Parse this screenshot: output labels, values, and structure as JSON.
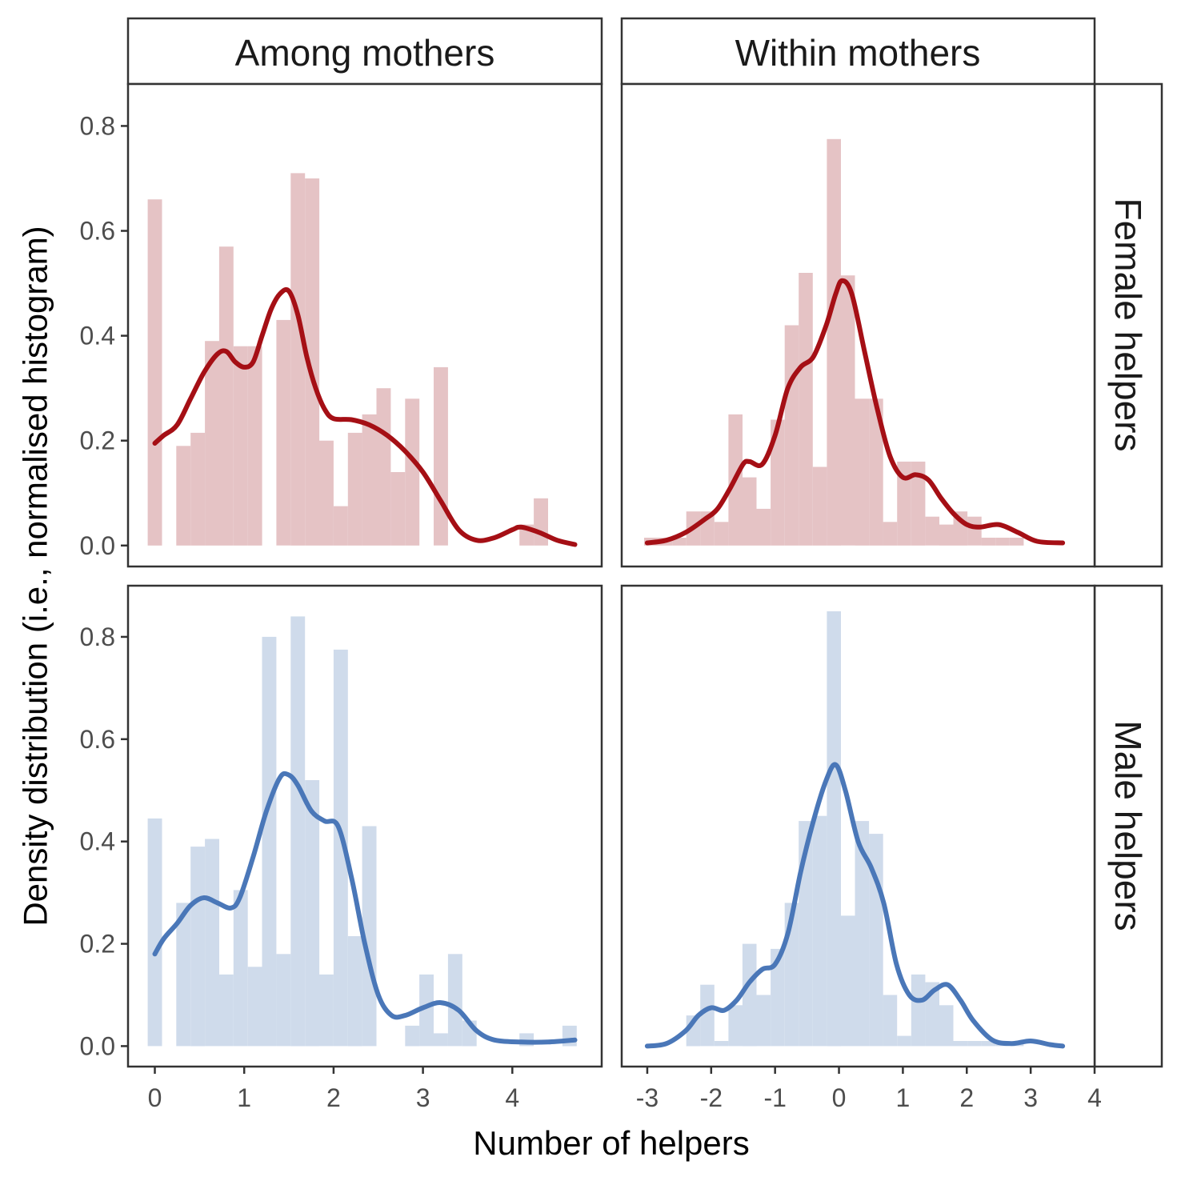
{
  "colors": {
    "female_line": "#a50f15",
    "female_bar": "#e5c3c5",
    "male_line": "#4a77b8",
    "male_bar": "#cfdbeb",
    "frame": "#333333",
    "tick_text": "#4d4d4d"
  },
  "chart_data": {
    "type": "bar",
    "xlabel": "Number of helpers",
    "ylabel": "Density distribution (i.e., normalised histogram)",
    "col_strips": [
      "Among mothers",
      "Within mothers"
    ],
    "row_strips": [
      "Female helpers",
      "Male helpers"
    ],
    "panels": [
      {
        "row": 0,
        "col": 0,
        "helpers": "female",
        "group": "among",
        "xlim": [
          -0.3,
          5.0
        ],
        "ylim": [
          -0.04,
          0.88
        ],
        "xticks": [
          0,
          1,
          2,
          3,
          4
        ],
        "xtick_labels": [
          "0",
          "1",
          "2",
          "3",
          "4"
        ],
        "yticks": [
          0.0,
          0.2,
          0.4,
          0.6,
          0.8
        ],
        "ytick_labels": [
          "0.0",
          "0.2",
          "0.4",
          "0.6",
          "0.8"
        ],
        "bin_start": -0.08,
        "bin_width": 0.16,
        "bars": [
          0.66,
          0,
          0.19,
          0.215,
          0.39,
          0.57,
          0.38,
          0.38,
          0,
          0.43,
          0.71,
          0.7,
          0.2,
          0.075,
          0.215,
          0.25,
          0.3,
          0.14,
          0.28,
          0,
          0.34,
          0,
          0,
          0,
          0,
          0,
          0.04,
          0.09,
          0,
          0
        ],
        "density": [
          [
            0.0,
            0.195
          ],
          [
            0.1,
            0.21
          ],
          [
            0.25,
            0.23
          ],
          [
            0.4,
            0.28
          ],
          [
            0.55,
            0.33
          ],
          [
            0.7,
            0.365
          ],
          [
            0.8,
            0.37
          ],
          [
            0.9,
            0.35
          ],
          [
            1.0,
            0.34
          ],
          [
            1.1,
            0.35
          ],
          [
            1.2,
            0.4
          ],
          [
            1.3,
            0.45
          ],
          [
            1.4,
            0.48
          ],
          [
            1.5,
            0.485
          ],
          [
            1.6,
            0.44
          ],
          [
            1.7,
            0.36
          ],
          [
            1.8,
            0.3
          ],
          [
            1.9,
            0.26
          ],
          [
            2.0,
            0.242
          ],
          [
            2.2,
            0.24
          ],
          [
            2.4,
            0.23
          ],
          [
            2.6,
            0.21
          ],
          [
            2.8,
            0.18
          ],
          [
            3.0,
            0.14
          ],
          [
            3.2,
            0.085
          ],
          [
            3.4,
            0.03
          ],
          [
            3.6,
            0.01
          ],
          [
            3.8,
            0.015
          ],
          [
            4.0,
            0.03
          ],
          [
            4.1,
            0.035
          ],
          [
            4.3,
            0.025
          ],
          [
            4.5,
            0.01
          ],
          [
            4.7,
            0.002
          ]
        ]
      },
      {
        "row": 0,
        "col": 1,
        "helpers": "female",
        "group": "within",
        "xlim": [
          -3.4,
          4.0
        ],
        "ylim": [
          -0.04,
          0.88
        ],
        "xticks": [
          -3,
          -2,
          -1,
          0,
          1,
          2,
          3,
          4
        ],
        "xtick_labels": [
          "-3",
          "-2",
          "-1",
          "0",
          "1",
          "2",
          "3",
          "4"
        ],
        "yticks": [
          0.0,
          0.2,
          0.4,
          0.6,
          0.8
        ],
        "ytick_labels": [
          "0.0",
          "0.2",
          "0.4",
          "0.6",
          "0.8"
        ],
        "bin_start": -3.05,
        "bin_width": 0.22,
        "bars": [
          0.015,
          0.015,
          0.015,
          0.065,
          0.065,
          0.045,
          0.25,
          0.13,
          0.07,
          0.24,
          0.42,
          0.52,
          0.15,
          0.775,
          0.515,
          0.28,
          0.28,
          0.045,
          0.16,
          0.16,
          0.055,
          0.04,
          0.065,
          0.055,
          0.015,
          0.015,
          0.015
        ],
        "density": [
          [
            -3.0,
            0.005
          ],
          [
            -2.7,
            0.01
          ],
          [
            -2.4,
            0.025
          ],
          [
            -2.1,
            0.05
          ],
          [
            -1.9,
            0.07
          ],
          [
            -1.7,
            0.11
          ],
          [
            -1.5,
            0.155
          ],
          [
            -1.4,
            0.16
          ],
          [
            -1.2,
            0.155
          ],
          [
            -1.0,
            0.21
          ],
          [
            -0.8,
            0.3
          ],
          [
            -0.6,
            0.34
          ],
          [
            -0.4,
            0.36
          ],
          [
            -0.2,
            0.42
          ],
          [
            -0.05,
            0.48
          ],
          [
            0.05,
            0.505
          ],
          [
            0.2,
            0.48
          ],
          [
            0.4,
            0.37
          ],
          [
            0.6,
            0.26
          ],
          [
            0.8,
            0.17
          ],
          [
            1.0,
            0.13
          ],
          [
            1.2,
            0.135
          ],
          [
            1.4,
            0.125
          ],
          [
            1.6,
            0.09
          ],
          [
            1.8,
            0.06
          ],
          [
            2.0,
            0.04
          ],
          [
            2.2,
            0.035
          ],
          [
            2.5,
            0.04
          ],
          [
            2.8,
            0.025
          ],
          [
            3.1,
            0.008
          ],
          [
            3.5,
            0.005
          ]
        ]
      },
      {
        "row": 1,
        "col": 0,
        "helpers": "male",
        "group": "among",
        "xlim": [
          -0.3,
          5.0
        ],
        "ylim": [
          -0.04,
          0.9
        ],
        "xticks": [
          0,
          1,
          2,
          3,
          4
        ],
        "xtick_labels": [
          "0",
          "1",
          "2",
          "3",
          "4"
        ],
        "yticks": [
          0.0,
          0.2,
          0.4,
          0.6,
          0.8
        ],
        "ytick_labels": [
          "0.0",
          "0.2",
          "0.4",
          "0.6",
          "0.8"
        ],
        "bin_start": -0.08,
        "bin_width": 0.16,
        "bars": [
          0.445,
          0,
          0.28,
          0.39,
          0.405,
          0.14,
          0.305,
          0.155,
          0.8,
          0.18,
          0.84,
          0.52,
          0.14,
          0.775,
          0.215,
          0.43,
          0,
          0,
          0.04,
          0.14,
          0.025,
          0.18,
          0.05,
          0,
          0,
          0,
          0.025,
          0,
          0,
          0.04
        ],
        "density": [
          [
            0.0,
            0.18
          ],
          [
            0.1,
            0.21
          ],
          [
            0.25,
            0.24
          ],
          [
            0.4,
            0.275
          ],
          [
            0.55,
            0.29
          ],
          [
            0.7,
            0.28
          ],
          [
            0.85,
            0.27
          ],
          [
            0.95,
            0.29
          ],
          [
            1.1,
            0.37
          ],
          [
            1.25,
            0.46
          ],
          [
            1.4,
            0.525
          ],
          [
            1.5,
            0.53
          ],
          [
            1.6,
            0.51
          ],
          [
            1.75,
            0.46
          ],
          [
            1.9,
            0.44
          ],
          [
            2.05,
            0.43
          ],
          [
            2.2,
            0.33
          ],
          [
            2.35,
            0.2
          ],
          [
            2.5,
            0.1
          ],
          [
            2.65,
            0.06
          ],
          [
            2.8,
            0.06
          ],
          [
            3.0,
            0.075
          ],
          [
            3.2,
            0.085
          ],
          [
            3.4,
            0.07
          ],
          [
            3.6,
            0.03
          ],
          [
            3.8,
            0.012
          ],
          [
            4.1,
            0.008
          ],
          [
            4.4,
            0.008
          ],
          [
            4.7,
            0.012
          ]
        ]
      },
      {
        "row": 1,
        "col": 1,
        "helpers": "male",
        "group": "within",
        "xlim": [
          -3.4,
          4.0
        ],
        "ylim": [
          -0.04,
          0.9
        ],
        "xticks": [
          -3,
          -2,
          -1,
          0,
          1,
          2,
          3,
          4
        ],
        "xtick_labels": [
          "-3",
          "-2",
          "-1",
          "0",
          "1",
          "2",
          "3",
          "4"
        ],
        "yticks": [
          0.0,
          0.2,
          0.4,
          0.6,
          0.8
        ],
        "ytick_labels": [
          "0.0",
          "0.2",
          "0.4",
          "0.6",
          "0.8"
        ],
        "bin_start": -3.05,
        "bin_width": 0.22,
        "bars": [
          0,
          0,
          0,
          0.06,
          0.12,
          0.01,
          0.08,
          0.2,
          0.1,
          0.19,
          0.28,
          0.44,
          0.45,
          0.85,
          0.255,
          0.44,
          0.415,
          0.1,
          0.02,
          0.14,
          0.125,
          0.08,
          0.01,
          0.01,
          0.01,
          0.01,
          0.005
        ],
        "density": [
          [
            -3.0,
            0.0
          ],
          [
            -2.7,
            0.005
          ],
          [
            -2.4,
            0.03
          ],
          [
            -2.2,
            0.06
          ],
          [
            -2.0,
            0.075
          ],
          [
            -1.8,
            0.07
          ],
          [
            -1.6,
            0.09
          ],
          [
            -1.4,
            0.125
          ],
          [
            -1.2,
            0.15
          ],
          [
            -1.0,
            0.16
          ],
          [
            -0.8,
            0.22
          ],
          [
            -0.6,
            0.34
          ],
          [
            -0.4,
            0.44
          ],
          [
            -0.2,
            0.52
          ],
          [
            -0.05,
            0.55
          ],
          [
            0.1,
            0.5
          ],
          [
            0.3,
            0.4
          ],
          [
            0.5,
            0.35
          ],
          [
            0.7,
            0.28
          ],
          [
            0.9,
            0.16
          ],
          [
            1.1,
            0.1
          ],
          [
            1.3,
            0.09
          ],
          [
            1.5,
            0.11
          ],
          [
            1.7,
            0.12
          ],
          [
            1.9,
            0.09
          ],
          [
            2.1,
            0.05
          ],
          [
            2.4,
            0.012
          ],
          [
            2.7,
            0.005
          ],
          [
            3.0,
            0.01
          ],
          [
            3.3,
            0.003
          ],
          [
            3.5,
            0.0
          ]
        ]
      }
    ]
  }
}
